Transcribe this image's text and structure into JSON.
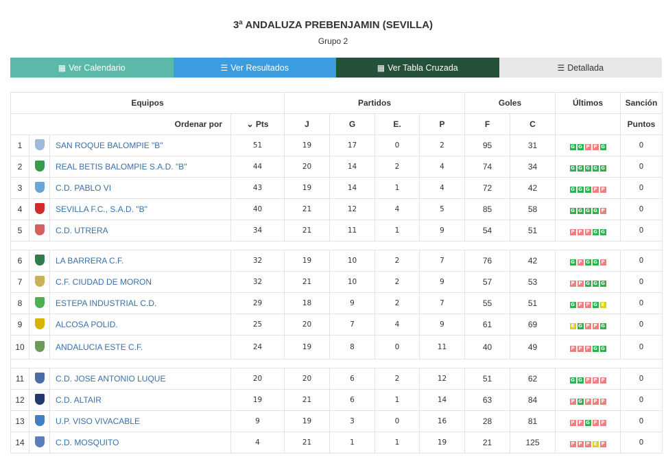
{
  "header": {
    "title": "3ª ANDALUZA PREBENJAMIN (SEVILLA)",
    "group": "Grupo 2"
  },
  "buttons": [
    {
      "label": "Ver Calendario",
      "icon": "calendar-icon",
      "color": "#5cb9a9"
    },
    {
      "label": "Ver Resultados",
      "icon": "list-icon",
      "color": "#3b9ce0"
    },
    {
      "label": "Ver Tabla Cruzada",
      "icon": "table-icon",
      "color": "#25503a"
    },
    {
      "label": "Detallada",
      "icon": "detail-list-icon",
      "color": "#e7e7e7"
    }
  ],
  "table": {
    "groups": {
      "equipos": "Equipos",
      "partidos": "Partidos",
      "goles": "Goles",
      "ultimos": "Últimos",
      "sancion": "Sanción"
    },
    "columns": {
      "ordenar": "Ordenar por",
      "pts": "Pts",
      "j": "J",
      "g": "G",
      "e": "E.",
      "p": "P",
      "f": "F",
      "c": "C",
      "puntos": "Puntos"
    },
    "sort_icon": "chevron-down-icon",
    "blocks": [
      [
        {
          "pos": "1",
          "name": "SAN ROQUE BALOMPIE \"B\"",
          "shield": "#9fb9d8",
          "pts": "51",
          "j": "19",
          "g": "17",
          "e": "0",
          "p": "2",
          "f": "95",
          "c": "31",
          "ult": [
            "G",
            "G",
            "P",
            "P",
            "G"
          ],
          "sancion": "0"
        },
        {
          "pos": "2",
          "name": "REAL BETIS BALOMPIE S.A.D. \"B\"",
          "shield": "#3a9a4b",
          "pts": "44",
          "j": "20",
          "g": "14",
          "e": "2",
          "p": "4",
          "f": "74",
          "c": "34",
          "ult": [
            "G",
            "G",
            "G",
            "G",
            "G"
          ],
          "sancion": "0"
        },
        {
          "pos": "3",
          "name": "C.D. PABLO VI",
          "shield": "#6aa5d6",
          "pts": "43",
          "j": "19",
          "g": "14",
          "e": "1",
          "p": "4",
          "f": "72",
          "c": "42",
          "ult": [
            "G",
            "G",
            "G",
            "P",
            "P"
          ],
          "sancion": "0"
        },
        {
          "pos": "4",
          "name": "SEVILLA F.C., S.A.D. \"B\"",
          "shield": "#d22b2b",
          "pts": "40",
          "j": "21",
          "g": "12",
          "e": "4",
          "p": "5",
          "f": "85",
          "c": "58",
          "ult": [
            "G",
            "G",
            "G",
            "G",
            "P"
          ],
          "sancion": "0"
        },
        {
          "pos": "5",
          "name": "C.D. UTRERA",
          "shield": "#d66060",
          "pts": "34",
          "j": "21",
          "g": "11",
          "e": "1",
          "p": "9",
          "f": "54",
          "c": "51",
          "ult": [
            "P",
            "P",
            "P",
            "G",
            "G"
          ],
          "sancion": "0"
        }
      ],
      [
        {
          "pos": "6",
          "name": "LA BARRERA C.F.",
          "shield": "#2e7d4a",
          "pts": "32",
          "j": "19",
          "g": "10",
          "e": "2",
          "p": "7",
          "f": "76",
          "c": "42",
          "ult": [
            "G",
            "P",
            "G",
            "G",
            "P"
          ],
          "sancion": "0"
        },
        {
          "pos": "7",
          "name": "C.F. CIUDAD DE MORON",
          "shield": "#c9b15a",
          "pts": "32",
          "j": "21",
          "g": "10",
          "e": "2",
          "p": "9",
          "f": "57",
          "c": "53",
          "ult": [
            "P",
            "P",
            "G",
            "G",
            "G"
          ],
          "sancion": "0"
        },
        {
          "pos": "8",
          "name": "ESTEPA INDUSTRIAL C.D.",
          "shield": "#4caf50",
          "pts": "29",
          "j": "18",
          "g": "9",
          "e": "2",
          "p": "7",
          "f": "55",
          "c": "51",
          "ult": [
            "G",
            "P",
            "P",
            "G",
            "E"
          ],
          "sancion": "0"
        },
        {
          "pos": "9",
          "name": "ALCOSA POLID.",
          "shield": "#d4b400",
          "pts": "25",
          "j": "20",
          "g": "7",
          "e": "4",
          "p": "9",
          "f": "61",
          "c": "69",
          "ult": [
            "E",
            "G",
            "P",
            "P",
            "G"
          ],
          "sancion": "0"
        },
        {
          "pos": "10",
          "name": "ANDALUCIA ESTE C.F.",
          "shield": "#6d9b5a",
          "pts": "24",
          "j": "19",
          "g": "8",
          "e": "0",
          "p": "11",
          "f": "40",
          "c": "49",
          "ult": [
            "P",
            "P",
            "P",
            "G",
            "G"
          ],
          "sancion": "0"
        }
      ],
      [
        {
          "pos": "11",
          "name": "C.D. JOSE ANTONIO LUQUE",
          "shield": "#4a6da8",
          "pts": "20",
          "j": "20",
          "g": "6",
          "e": "2",
          "p": "12",
          "f": "51",
          "c": "62",
          "ult": [
            "G",
            "G",
            "P",
            "P",
            "P"
          ],
          "sancion": "0"
        },
        {
          "pos": "12",
          "name": "C.D. ALTAIR",
          "shield": "#1f3a6b",
          "pts": "19",
          "j": "21",
          "g": "6",
          "e": "1",
          "p": "14",
          "f": "63",
          "c": "84",
          "ult": [
            "P",
            "G",
            "P",
            "P",
            "P"
          ],
          "sancion": "0"
        },
        {
          "pos": "13",
          "name": "U.P. VISO VIVACABLE",
          "shield": "#3f7fc4",
          "pts": "9",
          "j": "19",
          "g": "3",
          "e": "0",
          "p": "16",
          "f": "28",
          "c": "81",
          "ult": [
            "P",
            "P",
            "G",
            "P",
            "P"
          ],
          "sancion": "0"
        },
        {
          "pos": "14",
          "name": "C.D. MOSQUITO",
          "shield": "#5b7fb8",
          "pts": "4",
          "j": "21",
          "g": "1",
          "e": "1",
          "p": "19",
          "f": "21",
          "c": "125",
          "ult": [
            "P",
            "P",
            "P",
            "E",
            "P"
          ],
          "sancion": "0"
        }
      ]
    ]
  }
}
